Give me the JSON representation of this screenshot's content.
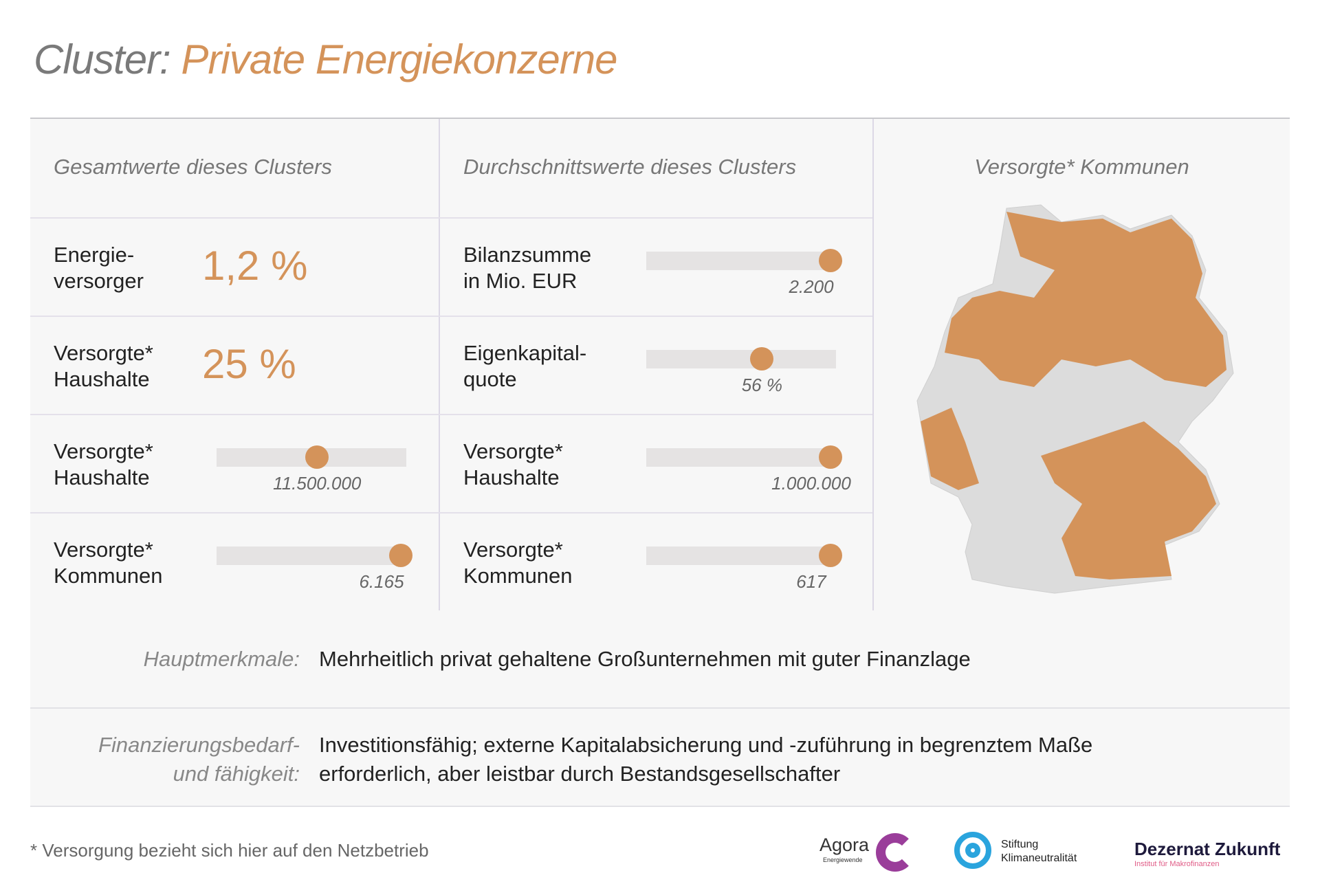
{
  "title": {
    "prefix": "Cluster:",
    "name": "Private Energiekonzerne"
  },
  "headers": {
    "total": "Gesamtwerte dieses Clusters",
    "average": "Durchschnittswerte dieses Clusters",
    "map": "Versorgte* Kommunen"
  },
  "total": [
    {
      "label1": "Energie-",
      "label2": "versorger",
      "big": "1,2 %"
    },
    {
      "label1": "Versorgte*",
      "label2": "Haushalte",
      "big": "25 %"
    },
    {
      "label1": "Versorgte*",
      "label2": "Haushalte",
      "value": "11.500.000",
      "fraction": 0.53
    },
    {
      "label1": "Versorgte*",
      "label2": "Kommunen",
      "value": "6.165",
      "fraction": 0.97
    }
  ],
  "average": [
    {
      "label1": "Bilanzsumme",
      "label2": "in Mio. EUR",
      "value": "2.200",
      "fraction": 0.97
    },
    {
      "label1": "Eigenkapital-",
      "label2": "quote",
      "value": "56 %",
      "fraction": 0.61
    },
    {
      "label1": "Versorgte*",
      "label2": "Haushalte",
      "value": "1.000.000",
      "fraction": 0.97
    },
    {
      "label1": "Versorgte*",
      "label2": "Kommunen",
      "value": "617",
      "fraction": 0.97
    }
  ],
  "features": {
    "label": "Hauptmerkmale:",
    "text": "Mehrheitlich privat gehaltene Großunternehmen mit guter Finanzlage"
  },
  "financing": {
    "label1": "Finanzierungsbedarf-",
    "label2": "und fähigkeit:",
    "text1": "Investitionsfähig; externe Kapitalabsicherung und -zuführung in begrenztem Maße",
    "text2": "erforderlich, aber leistbar durch Bestandsgesellschafter"
  },
  "footnote": "* Versorgung bezieht sich hier auf den Netzbetrieb",
  "logos": {
    "agora": "Agora",
    "agora_sub": "Energiewende",
    "stiftung1": "Stiftung",
    "stiftung2": "Klimaneutralität",
    "dezernat": "Dezernat Zukunft",
    "dezernat_sub": "Institut für Makrofinanzen"
  },
  "colors": {
    "accent": "#d4935a",
    "panel": "#f7f7f7",
    "track": "#e5e3e3",
    "map_gray": "#dcdcdc"
  }
}
